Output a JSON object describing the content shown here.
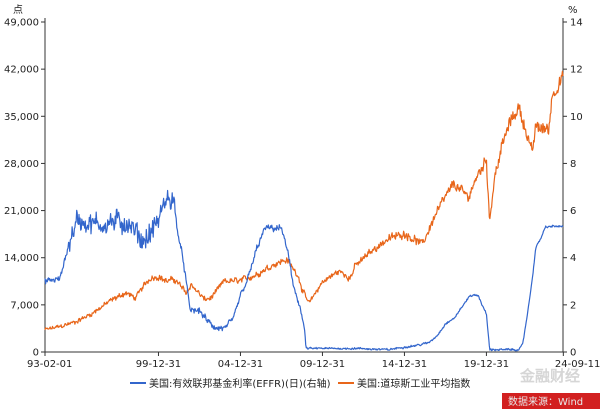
{
  "chart_data": {
    "type": "line",
    "title": "",
    "left_axis": {
      "unit_label": "点",
      "ylim": [
        0,
        49000
      ],
      "ticks": [
        "0",
        "7,000",
        "14,000",
        "21,000",
        "28,000",
        "35,000",
        "42,000",
        "49,000"
      ],
      "tick_values": [
        0,
        7000,
        14000,
        21000,
        28000,
        35000,
        42000,
        49000
      ]
    },
    "right_axis": {
      "unit_label": "%",
      "ylim": [
        0,
        14
      ],
      "ticks": [
        "0",
        "2",
        "4",
        "6",
        "8",
        "10",
        "12",
        "14"
      ],
      "tick_values": [
        0,
        2,
        4,
        6,
        8,
        10,
        12,
        14
      ]
    },
    "x_axis": {
      "range": [
        1993.08,
        2024.67
      ],
      "tick_labels": [
        "93-02-01",
        "99-12-31",
        "04-12-31",
        "09-12-31",
        "14-12-31",
        "19-12-31",
        "24-09-11"
      ],
      "tick_values": [
        1993.08,
        2000.0,
        2005.0,
        2010.0,
        2015.0,
        2020.0,
        2024.69
      ]
    },
    "grid": false,
    "legend_position": "bottom",
    "series": [
      {
        "name": "美国:有效联邦基金利率(EFFR)(日)(右轴)",
        "axis": "right",
        "color": "#3366cc",
        "noise": 0.16,
        "x": [
          1993.08,
          1994.0,
          1994.5,
          1995.0,
          1996.0,
          1997.0,
          1998.0,
          1998.7,
          1999.0,
          1999.5,
          2000.0,
          2000.5,
          2000.9,
          2001.2,
          2001.5,
          2001.7,
          2001.9,
          2002.5,
          2003.0,
          2003.5,
          2004.0,
          2004.5,
          2005.0,
          2005.5,
          2006.0,
          2006.5,
          2007.0,
          2007.5,
          2007.9,
          2008.2,
          2008.6,
          2008.9,
          2009.0,
          2010.0,
          2012.0,
          2014.0,
          2015.9,
          2016.5,
          2017.0,
          2017.5,
          2018.0,
          2018.5,
          2019.0,
          2019.5,
          2019.8,
          2020.0,
          2020.2,
          2020.5,
          2021.0,
          2022.0,
          2022.2,
          2022.5,
          2022.8,
          2023.0,
          2023.3,
          2023.6,
          2024.0,
          2024.69
        ],
        "y": [
          3.0,
          3.1,
          4.5,
          5.6,
          5.4,
          5.5,
          5.5,
          5.0,
          4.7,
          5.0,
          5.6,
          6.5,
          6.5,
          5.0,
          3.9,
          3.0,
          1.8,
          1.75,
          1.3,
          1.0,
          1.0,
          1.3,
          2.4,
          3.2,
          4.4,
          5.25,
          5.25,
          5.25,
          4.2,
          2.9,
          2.0,
          1.0,
          0.15,
          0.15,
          0.15,
          0.1,
          0.3,
          0.4,
          0.7,
          1.2,
          1.4,
          1.9,
          2.4,
          2.4,
          1.9,
          1.6,
          0.1,
          0.1,
          0.1,
          0.1,
          0.3,
          1.6,
          3.1,
          4.4,
          4.8,
          5.3,
          5.33,
          5.33
        ]
      },
      {
        "name": "美国:道琼斯工业平均指数",
        "axis": "left",
        "color": "#e8661a",
        "noise": 280,
        "x": [
          1993.08,
          1994.0,
          1995.0,
          1996.0,
          1997.0,
          1998.0,
          1998.6,
          1999.0,
          1999.5,
          2000.0,
          2000.5,
          2001.0,
          2001.7,
          2002.0,
          2002.8,
          2003.2,
          2004.0,
          2005.0,
          2006.0,
          2007.0,
          2007.8,
          2008.5,
          2008.8,
          2009.2,
          2009.5,
          2010.0,
          2011.0,
          2011.7,
          2012.0,
          2013.0,
          2014.0,
          2015.0,
          2016.1,
          2017.0,
          2018.0,
          2018.9,
          2019.5,
          2020.0,
          2020.2,
          2020.5,
          2021.0,
          2021.5,
          2022.0,
          2022.8,
          2023.0,
          2023.8,
          2024.0,
          2024.69
        ],
        "y": [
          3300,
          3800,
          4500,
          5800,
          7500,
          8800,
          8000,
          9500,
          11000,
          11200,
          10500,
          10800,
          8800,
          10000,
          7800,
          8000,
          10500,
          10600,
          11500,
          13000,
          13700,
          11500,
          9000,
          7200,
          8500,
          10400,
          12000,
          11000,
          12800,
          15000,
          16800,
          17600,
          16000,
          21000,
          25000,
          23000,
          26500,
          28500,
          19500,
          26000,
          31000,
          34500,
          36300,
          29500,
          33500,
          33000,
          38000,
          41000
        ]
      }
    ],
    "source": "数据来源：Wind",
    "watermark": "金融财经"
  }
}
